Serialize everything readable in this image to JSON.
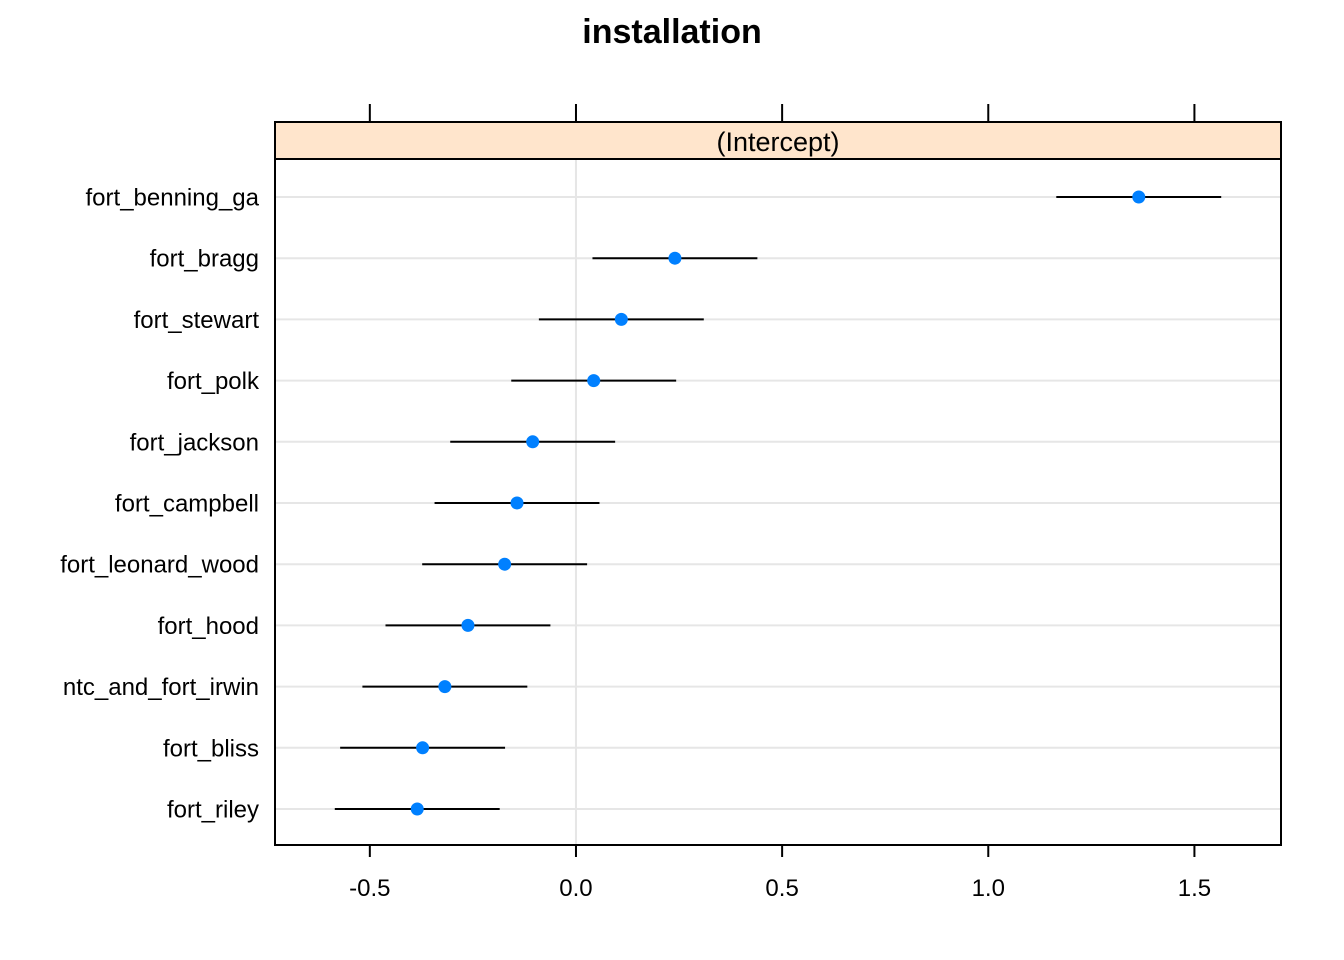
{
  "chart_data": {
    "type": "dotplot",
    "title": "installation",
    "strip_label": "(Intercept)",
    "xlim": [
      -0.73,
      1.71
    ],
    "xticks": [
      -0.5,
      0.0,
      0.5,
      1.0,
      1.5
    ],
    "xtick_labels": [
      "-0.5",
      "0.0",
      "0.5",
      "1.0",
      "1.5"
    ],
    "grid": true,
    "categories": [
      "fort_benning_ga",
      "fort_bragg",
      "fort_stewart",
      "fort_polk",
      "fort_jackson",
      "fort_campbell",
      "fort_leonard_wood",
      "fort_hood",
      "ntc_and_fort_irwin",
      "fort_bliss",
      "fort_riley"
    ],
    "values": [
      1.365,
      0.24,
      0.11,
      0.043,
      -0.105,
      -0.143,
      -0.173,
      -0.262,
      -0.318,
      -0.372,
      -0.385
    ],
    "lower": [
      1.165,
      0.04,
      -0.09,
      -0.157,
      -0.305,
      -0.343,
      -0.373,
      -0.462,
      -0.518,
      -0.572,
      -0.585
    ],
    "upper": [
      1.565,
      0.44,
      0.31,
      0.243,
      0.095,
      0.057,
      0.027,
      -0.062,
      -0.118,
      -0.172,
      -0.185
    ],
    "point_color": "#0080ff",
    "strip_color": "#ffe5cc"
  }
}
